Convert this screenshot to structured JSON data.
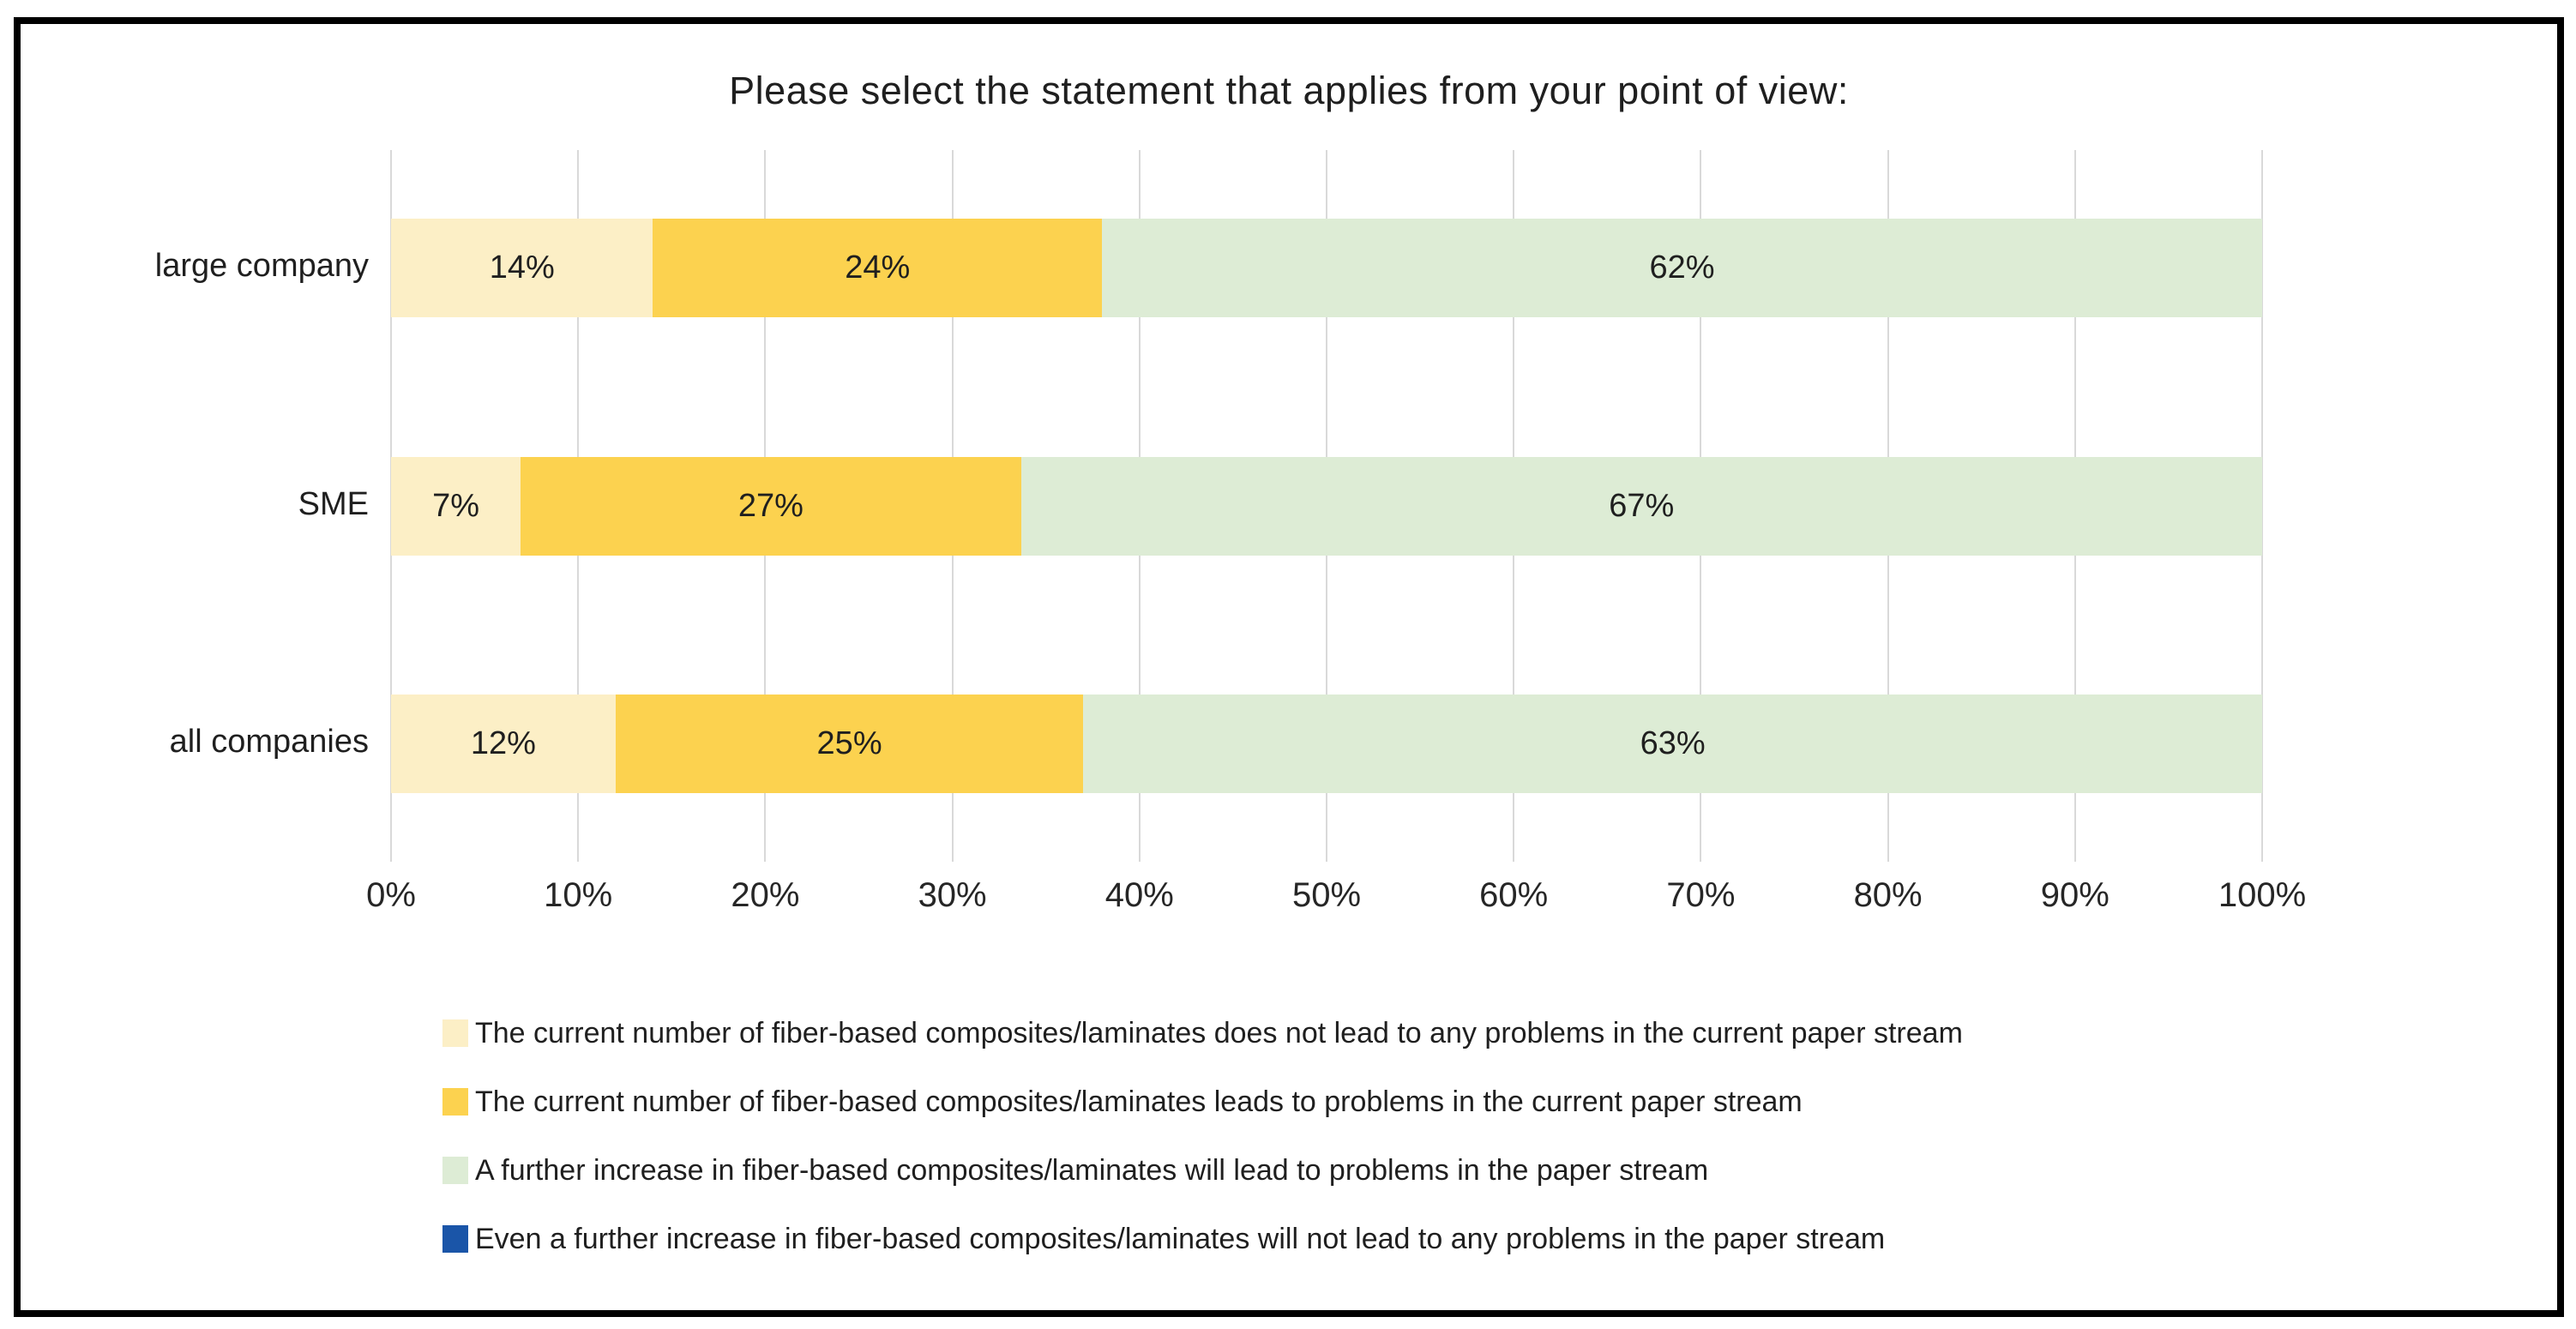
{
  "chart_data": {
    "type": "bar",
    "variant": "horizontal-stacked",
    "title": "Please select the statement that applies from your point of view:",
    "categories": [
      "large company",
      "SME",
      "all companies"
    ],
    "series": [
      {
        "name": "The current number of fiber-based composites/laminates does not lead to any problems in the current paper stream",
        "color": "#FCEFC6",
        "values": [
          14,
          7,
          12
        ]
      },
      {
        "name": "The current number of fiber-based composites/laminates leads to problems in the current paper stream",
        "color": "#FCD24F",
        "values": [
          24,
          27,
          25
        ]
      },
      {
        "name": "A further increase in fiber-based composites/laminates will lead to problems in the paper stream",
        "color": "#DDECD5",
        "values": [
          62,
          67,
          63
        ]
      },
      {
        "name": "Even a further increase in fiber-based composites/laminates will not lead to any problems in the paper stream",
        "color": "#1A55A8",
        "values": [
          0,
          0,
          0
        ]
      }
    ],
    "x_tick_labels": [
      "0%",
      "10%",
      "20%",
      "30%",
      "40%",
      "50%",
      "60%",
      "70%",
      "80%",
      "90%",
      "100%"
    ],
    "xlim": [
      0,
      100
    ],
    "value_suffix": "%",
    "grid": "vertical",
    "legend_position": "bottom-left"
  },
  "colors": {
    "frame_border": "#000000",
    "gridline": "#D9D9D9",
    "text": "#1F1F1F",
    "background": "#FFFFFF"
  }
}
